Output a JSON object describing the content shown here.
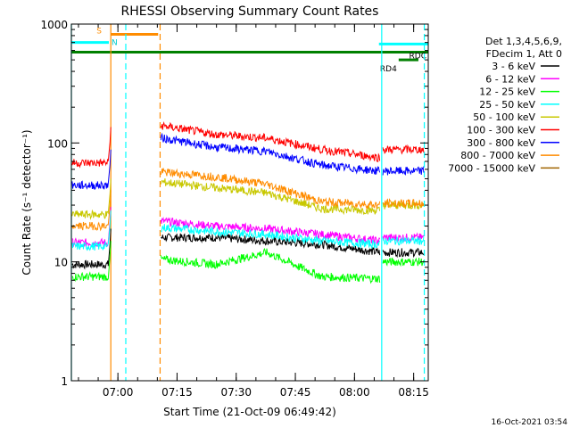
{
  "chart_data": {
    "type": "line",
    "title": "RHESSI Observing Summary Count Rates",
    "xlabel": "Start Time (21-Oct-09 06:49:42)",
    "ylabel": "Count Rate (s⁻¹ detector⁻¹)",
    "y_scale": "log",
    "ylim": [
      1,
      1000
    ],
    "y_ticks": [
      1,
      10,
      100,
      1000
    ],
    "y_tick_labels": [
      "1",
      "10",
      "100",
      "1000"
    ],
    "x_range_min": [
      -1.5,
      89.0
    ],
    "x_ticks_min": [
      10.3,
      25.3,
      40.3,
      55.3,
      70.3,
      85.3
    ],
    "x_tick_labels": [
      "07:00",
      "07:15",
      "07:30",
      "07:45",
      "08:00",
      "08:15"
    ],
    "legend_header": [
      "Det 1,3,4,5,6,9,",
      "FDecim 1, Att 0"
    ],
    "footer": "16-Oct-2021 03:54",
    "series": [
      {
        "name": "3 - 6 keV",
        "color": "#000000",
        "v1": 9.5,
        "v2": 16,
        "v3": [
          16,
          15,
          14,
          12
        ],
        "v4": 12
      },
      {
        "name": "6 - 12 keV",
        "color": "#ff00ff",
        "v1": 14.5,
        "v2": 22,
        "v3": [
          20,
          19,
          17,
          15
        ],
        "v4": 16
      },
      {
        "name": "12 - 25 keV",
        "color": "#00ff00",
        "v1": 7.5,
        "v2": 10.5,
        "v3": [
          9.5,
          12,
          7.5,
          7.2
        ],
        "v4": 10
      },
      {
        "name": "25 - 50 keV",
        "color": "#00ffff",
        "v1": 13.5,
        "v2": 19.5,
        "v3": [
          18,
          17,
          15,
          14
        ],
        "v4": 15
      },
      {
        "name": "50 - 100 keV",
        "color": "#c8c800",
        "v1": 25,
        "v2": 47,
        "v3": [
          42,
          38,
          28,
          27
        ],
        "v4": 30
      },
      {
        "name": "100 - 300 keV",
        "color": "#ff0000",
        "v1": 68,
        "v2": 140,
        "v3": [
          118,
          110,
          88,
          75
        ],
        "v4": 88
      },
      {
        "name": "300 - 800 keV",
        "color": "#0000ff",
        "v1": 44,
        "v2": 110,
        "v3": [
          92,
          85,
          65,
          58
        ],
        "v4": 58
      },
      {
        "name": "800 - 7000 keV",
        "color": "#ff8c00",
        "v1": 20,
        "v2": 57,
        "v3": [
          52,
          45,
          32,
          30
        ],
        "v4": 31
      },
      {
        "name": "7000 - 15000 keV",
        "color": "#a06400",
        "v1": null,
        "v2": null,
        "v3": [
          null,
          null,
          null,
          null
        ],
        "v4": null
      }
    ],
    "event_bars": [
      {
        "label": "S",
        "color": "#ff8c00",
        "x0": 8.5,
        "x1": 20.5,
        "level": 820
      },
      {
        "label": "N",
        "color": "#00ffff",
        "x0": -1.5,
        "x1": 8.0,
        "level": 700
      },
      {
        "label": "",
        "color": "#008000",
        "x0": -1.5,
        "x1": 89.0,
        "level": 580
      },
      {
        "label": "RDC",
        "color": "#00ffff",
        "x0": 76.5,
        "x1": 89.0,
        "level": 680
      },
      {
        "label": "RD4",
        "color": "#008000",
        "x0": 81.5,
        "x1": 86.5,
        "level": 500
      }
    ],
    "vlines": [
      {
        "x": -1.5,
        "color": "#00ffff",
        "dash": false
      },
      {
        "x": 8.5,
        "color": "#ff8c00",
        "dash": false
      },
      {
        "x": 12.3,
        "color": "#00ffff",
        "dash": true
      },
      {
        "x": 21.0,
        "color": "#ff8c00",
        "dash": true
      },
      {
        "x": 77.2,
        "color": "#00ffff",
        "dash": false
      },
      {
        "x": 88.0,
        "color": "#00ffff",
        "dash": true
      }
    ]
  }
}
